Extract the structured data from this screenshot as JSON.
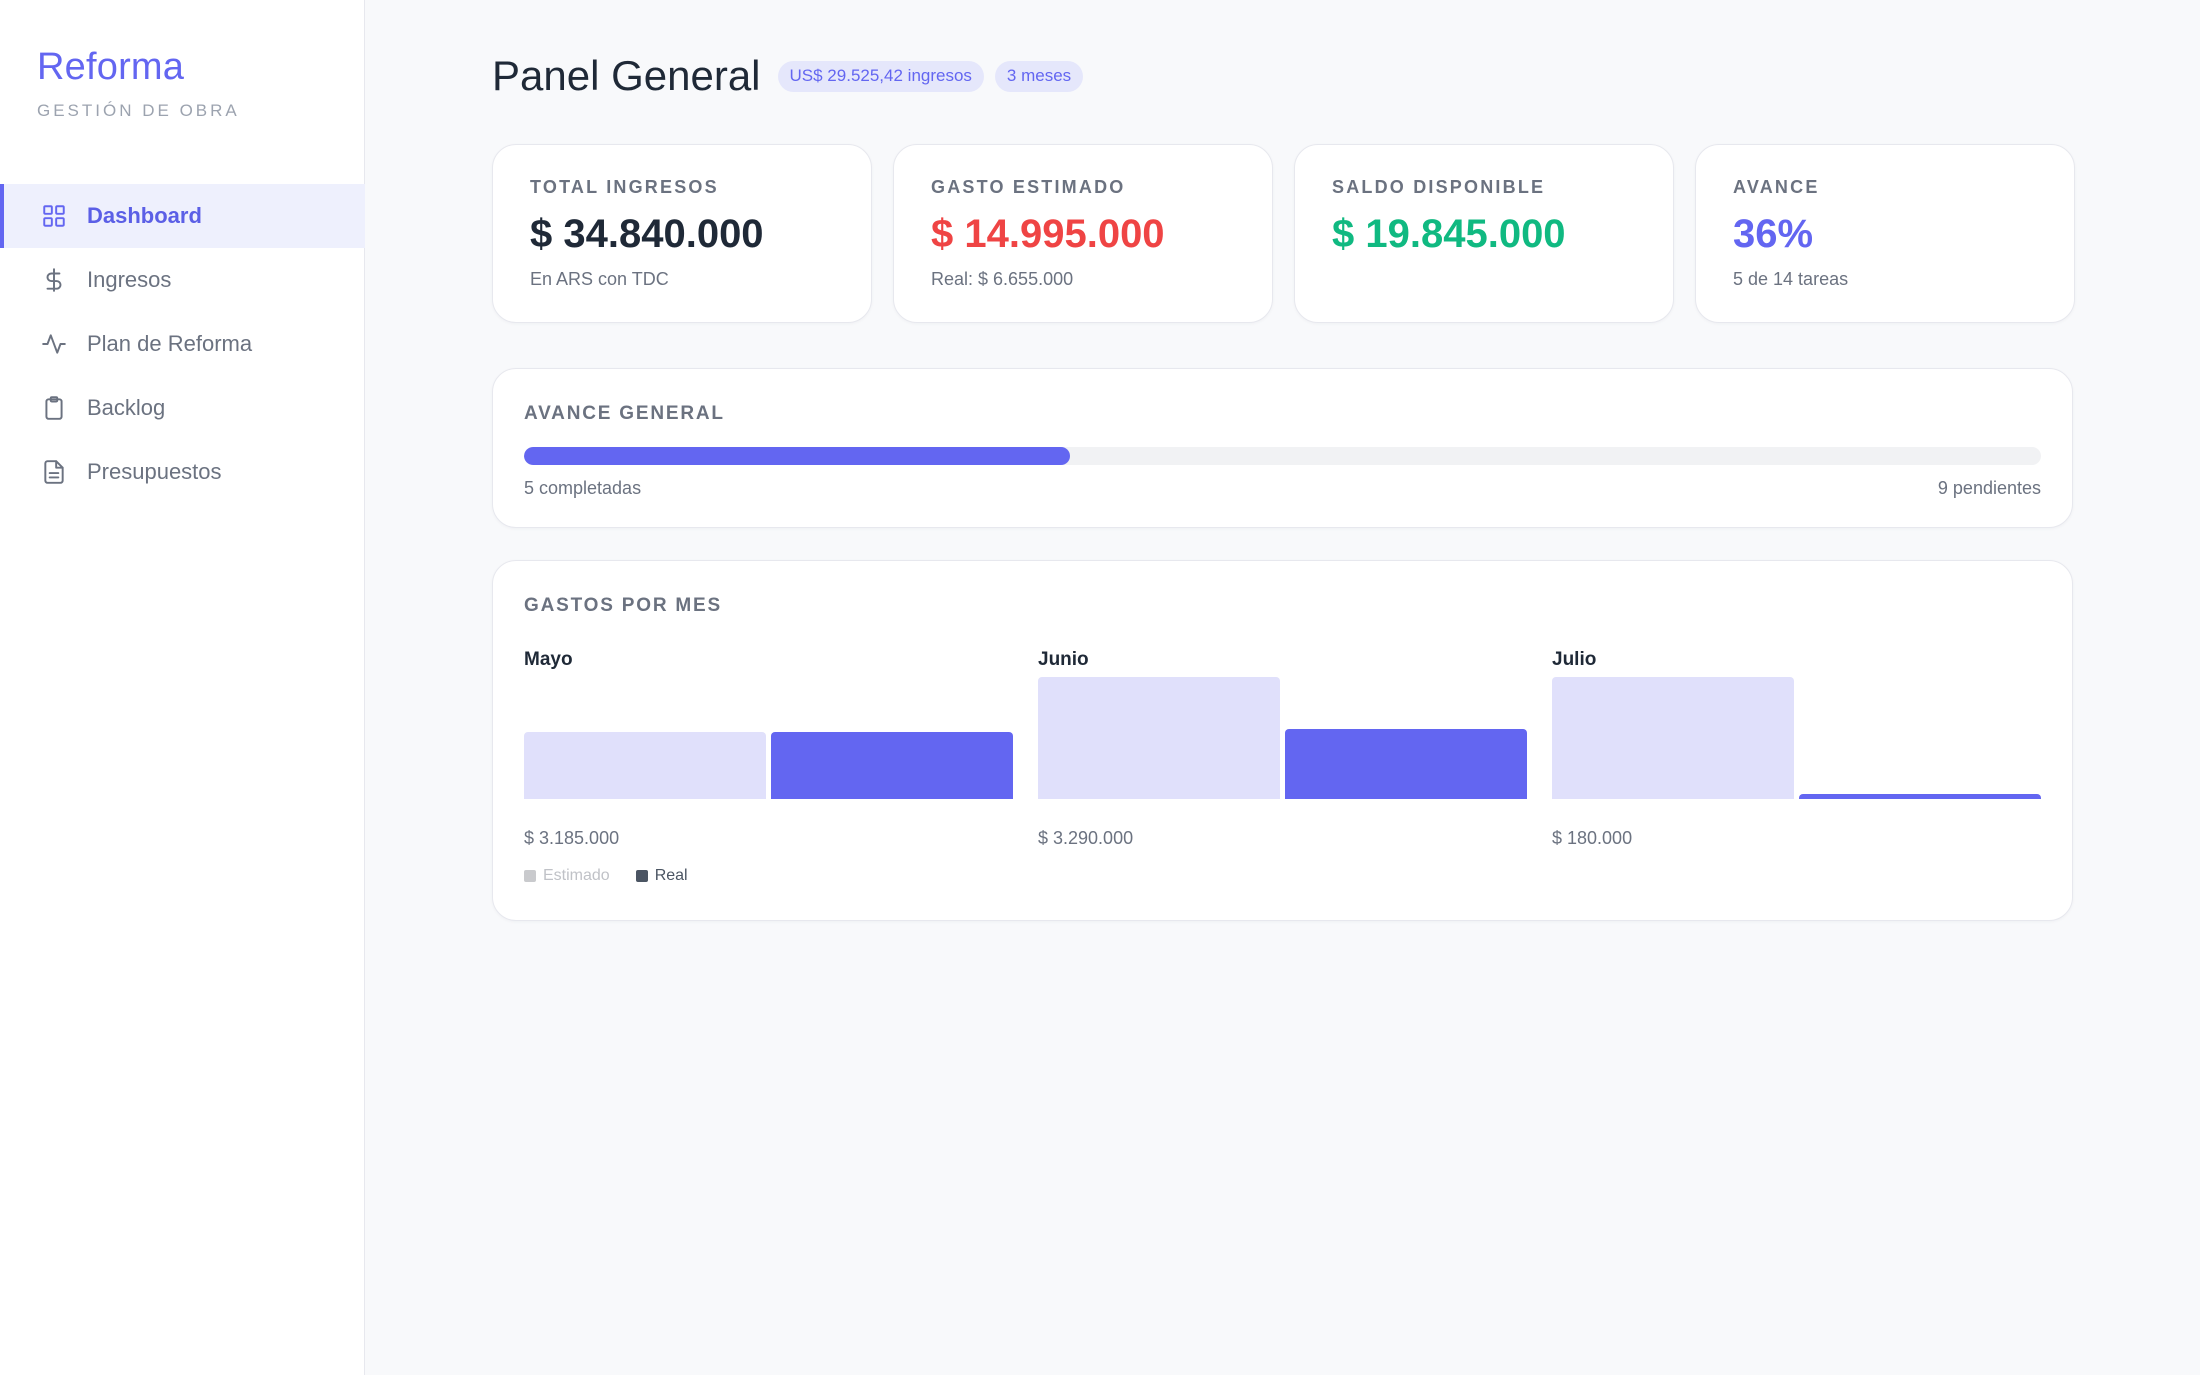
{
  "brand": {
    "title": "Reforma",
    "subtitle": "GESTIÓN DE OBRA"
  },
  "sidebar": {
    "items": [
      {
        "label": "Dashboard",
        "icon": "grid-icon",
        "active": true
      },
      {
        "label": "Ingresos",
        "icon": "dollar-icon",
        "active": false
      },
      {
        "label": "Plan de Reforma",
        "icon": "activity-icon",
        "active": false
      },
      {
        "label": "Backlog",
        "icon": "clipboard-icon",
        "active": false
      },
      {
        "label": "Presupuestos",
        "icon": "document-icon",
        "active": false
      }
    ]
  },
  "header": {
    "title": "Panel General",
    "badges": [
      "US$ 29.525,42 ingresos",
      "3 meses"
    ]
  },
  "stats": [
    {
      "label": "TOTAL INGRESOS",
      "value": "$ 34.840.000",
      "note": "En ARS con TDC",
      "color": "#1f2937"
    },
    {
      "label": "GASTO ESTIMADO",
      "value": "$ 14.995.000",
      "note": "Real: $ 6.655.000",
      "color": "#ef4444"
    },
    {
      "label": "SALDO DISPONIBLE",
      "value": "$ 19.845.000",
      "note": "",
      "color": "#10b981"
    },
    {
      "label": "AVANCE",
      "value": "36%",
      "note": "5 de 14 tareas",
      "color": "#6366f1"
    }
  ],
  "progress": {
    "title": "AVANCE GENERAL",
    "fraction": 0.36,
    "completed_label": "5 completadas",
    "pending_label": "9 pendientes"
  },
  "expenses": {
    "title": "GASTOS POR MES",
    "legend": {
      "estimated": "Estimado",
      "real": "Real"
    }
  },
  "chart_data": {
    "type": "bar",
    "title": "GASTOS POR MES",
    "categories": [
      "Mayo",
      "Junio",
      "Julio"
    ],
    "category_totals": [
      "$ 3.185.000",
      "$ 3.290.000",
      "$ 180.000"
    ],
    "series": [
      {
        "name": "Estimado",
        "values": [
          55,
          100,
          100
        ],
        "color": "#e0e0fb"
      },
      {
        "name": "Real",
        "values": [
          55,
          57,
          4
        ],
        "color": "#6366f1"
      }
    ],
    "ylim": [
      0,
      100
    ],
    "grid": false,
    "legend_position": "bottom-left"
  },
  "colors": {
    "accent": "#6366f1",
    "danger": "#ef4444",
    "success": "#10b981",
    "muted": "#6b7280"
  }
}
